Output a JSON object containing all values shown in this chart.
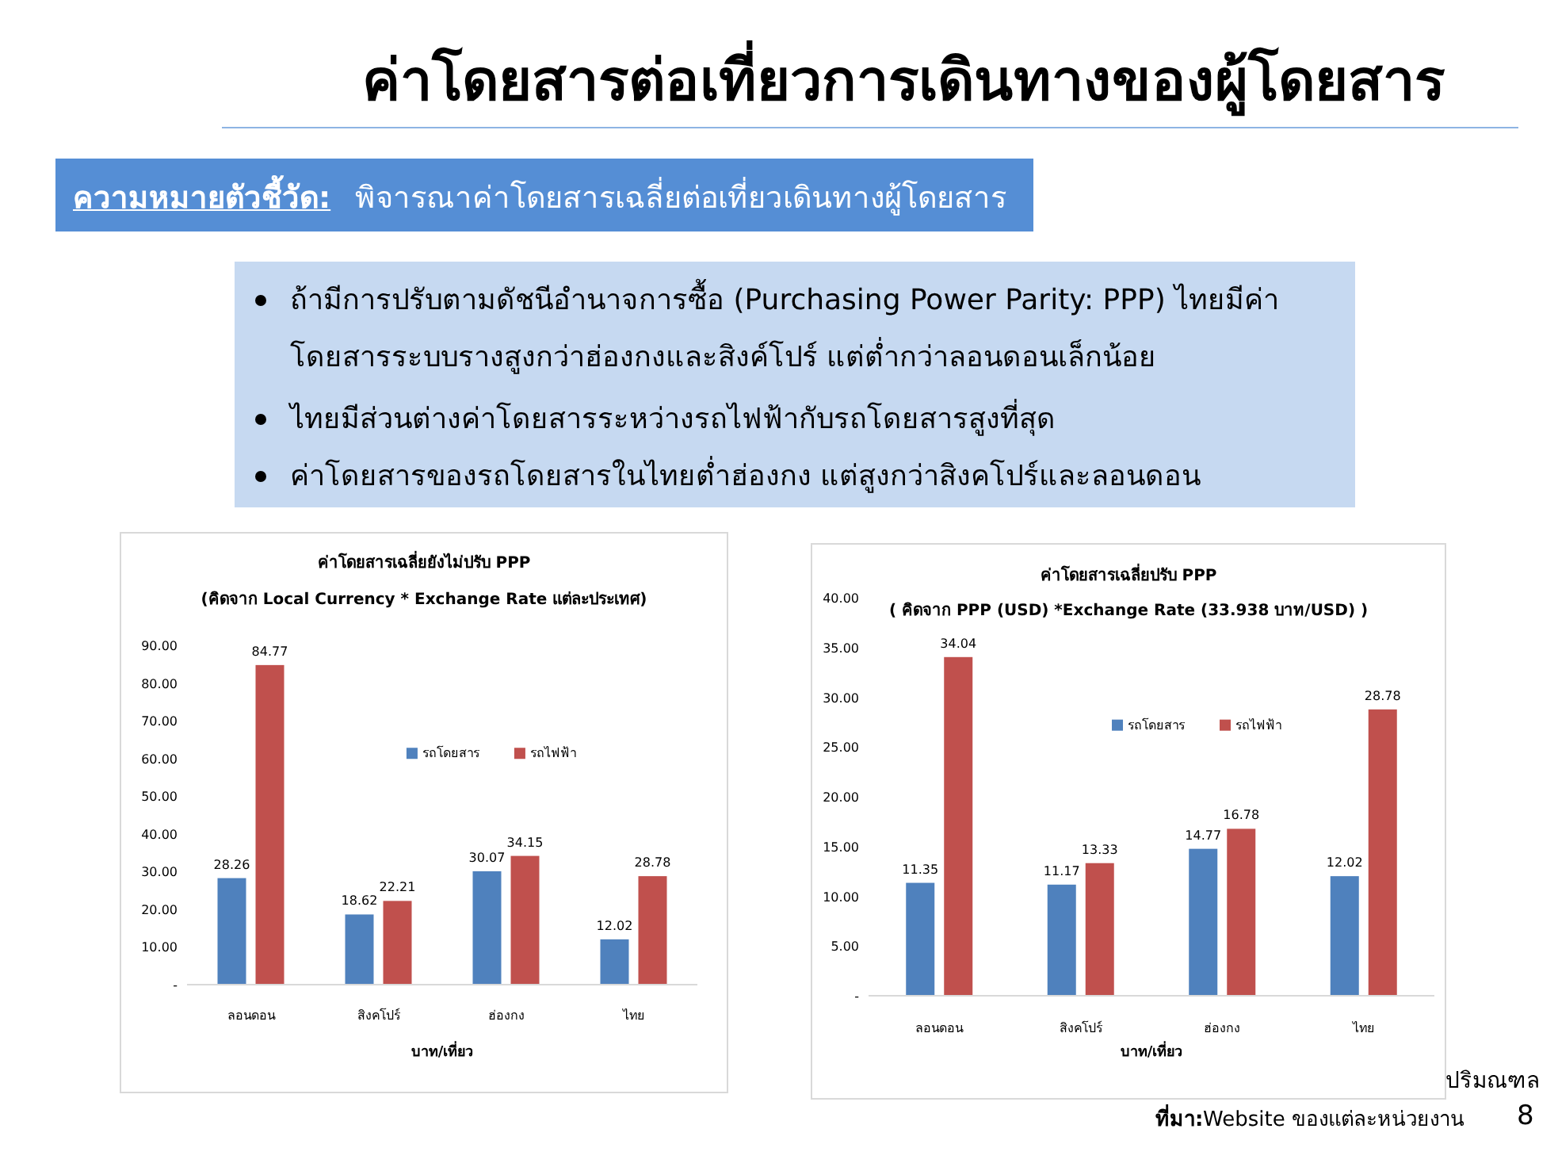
{
  "chart_data": [
    {
      "type": "other",
      "title": "ค่าโดยสารต่อเที่ยวการเดินทางของผู้โดยสาร",
      "annotations": [
        "ความหมายตัวชี้วัด:",
        "พิจารณาค่าโดยสารเฉลี่ยต่อเที่ยวเดินทางผู้โดยสาร",
        "ถ้ามีการปรับตามดัชนีอำนาจการซื้อ (Purchasing Power Parity: PPP) ไทยมีค่าโดยสารระบบรางสูงกว่าฮ่องกงและสิงค์โปร์ แต่ต่ำกว่าลอนดอนเล็กน้อย",
        "ไทยมีส่วนต่างค่าโดยสารระหว่างรถไฟฟ้ากับรถโดยสารสูงที่สุด",
        "ค่าโดยสารของรถโดยสารในไทยต่ำฮ่องกง แต่สูงกว่าสิงคโปร์และลอนดอน",
        "ปริมณฑล",
        "ที่มา:",
        "Website ของแต่ละหน่วยงาน",
        "8"
      ]
    },
    {
      "type": "bar",
      "title": "ค่าโดยสารเฉลี่ยยังไม่ปรับ PPP",
      "subtitle": "(คิดจาก Local Currency * Exchange Rate แต่ละประเทศ)",
      "xlabel": "บาท/เที่ยว",
      "categories": [
        "ลอนดอน",
        "สิงคโปร์",
        "ฮ่องกง",
        "ไทย"
      ],
      "series": [
        {
          "name": "รถโดยสาร",
          "color": "#4f81bd",
          "values": [
            28.26,
            18.62,
            30.07,
            12.02
          ]
        },
        {
          "name": "รถไฟฟ้า",
          "color": "#c0504d",
          "values": [
            84.77,
            22.21,
            34.15,
            28.78
          ]
        }
      ],
      "ylim": [
        0,
        90
      ],
      "yticks": [
        {
          "value": 0,
          "label": "-"
        },
        {
          "value": 10,
          "label": "10.00"
        },
        {
          "value": 20,
          "label": "20.00"
        },
        {
          "value": 30,
          "label": "30.00"
        },
        {
          "value": 40,
          "label": "40.00"
        },
        {
          "value": 50,
          "label": "50.00"
        },
        {
          "value": 60,
          "label": "60.00"
        },
        {
          "value": 70,
          "label": "70.00"
        },
        {
          "value": 80,
          "label": "80.00"
        },
        {
          "value": 90,
          "label": "90.00"
        }
      ],
      "data_labels": true,
      "legend": "right",
      "grid": false
    },
    {
      "type": "bar",
      "title": "ค่าโดยสารเฉลี่ยปรับ PPP",
      "subtitle": "( คิดจาก PPP (USD) *Exchange Rate (33.938 บาท/USD)  )",
      "xlabel": "บาท/เที่ยว",
      "categories": [
        "ลอนดอน",
        "สิงคโปร์",
        "ฮ่องกง",
        "ไทย"
      ],
      "series": [
        {
          "name": "รถโดยสาร",
          "color": "#4f81bd",
          "values": [
            11.35,
            11.17,
            14.77,
            12.02
          ]
        },
        {
          "name": "รถไฟฟ้า",
          "color": "#c0504d",
          "values": [
            34.04,
            13.33,
            16.78,
            28.78
          ]
        }
      ],
      "ylim": [
        0,
        40
      ],
      "yticks": [
        {
          "value": 0,
          "label": "-"
        },
        {
          "value": 5,
          "label": "5.00"
        },
        {
          "value": 10,
          "label": "10.00"
        },
        {
          "value": 15,
          "label": "15.00"
        },
        {
          "value": 20,
          "label": "20.00"
        },
        {
          "value": 25,
          "label": "25.00"
        },
        {
          "value": 30,
          "label": "30.00"
        },
        {
          "value": 35,
          "label": "35.00"
        },
        {
          "value": 40,
          "label": "40.00"
        }
      ],
      "data_labels": true,
      "legend": "right",
      "grid": false
    }
  ]
}
